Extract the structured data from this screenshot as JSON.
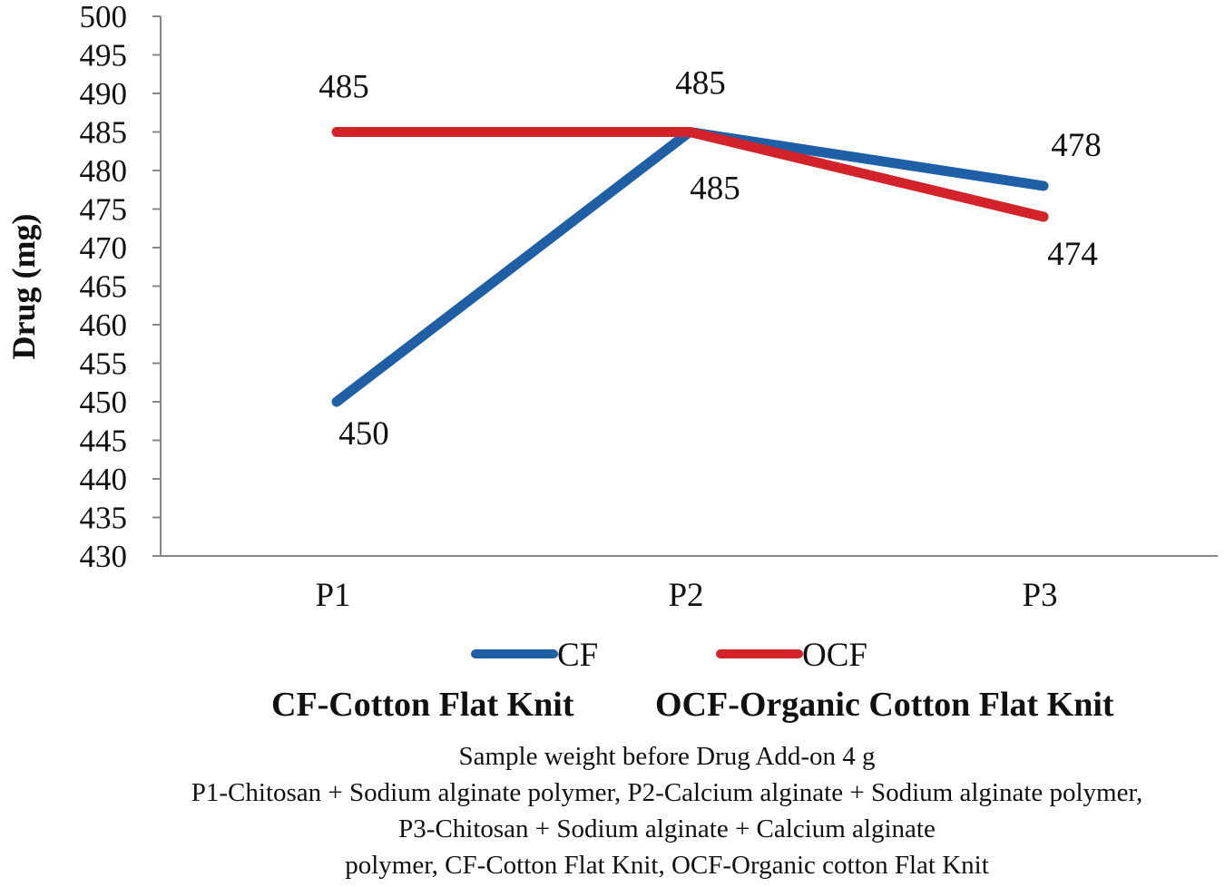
{
  "chart_data": {
    "type": "line",
    "title": "",
    "xlabel": "",
    "ylabel": "Drug (mg)",
    "categories": [
      "P1",
      "P2",
      "P3"
    ],
    "ylim": [
      430,
      500
    ],
    "ytick_step": 5,
    "grid": false,
    "legend_position": "bottom",
    "series": [
      {
        "name": "CF",
        "color": "#1f5fa5",
        "values": [
          450,
          485,
          478
        ],
        "labels": [
          "450",
          "485",
          "478"
        ]
      },
      {
        "name": "OCF",
        "color": "#d2232a",
        "values": [
          485,
          485,
          474
        ],
        "labels": [
          "485",
          "485",
          "474"
        ]
      }
    ]
  },
  "abbreviations": [
    "CF-Cotton Flat Knit",
    "OCF-Organic Cotton Flat Knit"
  ],
  "notes": [
    "Sample weight before Drug Add-on 4 g",
    "P1-Chitosan + Sodium alginate polymer, P2-Calcium alginate + Sodium alginate polymer,",
    "P3-Chitosan + Sodium alginate + Calcium alginate",
    "polymer, CF-Cotton Flat Knit, OCF-Organic cotton Flat Knit"
  ]
}
